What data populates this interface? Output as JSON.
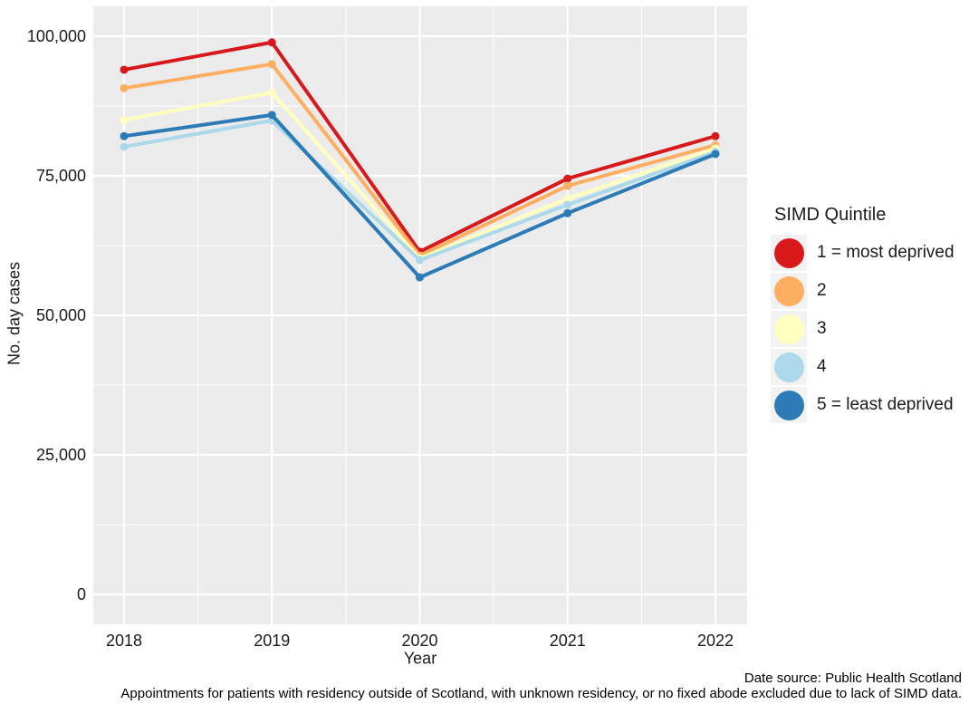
{
  "figure": {
    "y_axis_title": "No. day cases",
    "x_axis_title": "Year",
    "caption_line1": "Date source: Public Health Scotland",
    "caption_line2": "Appointments for patients with residency outside of Scotland, with unknown residency, or no fixed abode excluded due to lack of SIMD data."
  },
  "legend": {
    "title": "SIMD Quintile",
    "items": [
      {
        "label": "1 = most deprived",
        "color": "#d7191c"
      },
      {
        "label": "2",
        "color": "#fdae61"
      },
      {
        "label": "3",
        "color": "#ffffbf"
      },
      {
        "label": "4",
        "color": "#abd9e9"
      },
      {
        "label": "5 = least deprived",
        "color": "#2c7bb6"
      }
    ]
  },
  "chart_data": {
    "type": "line",
    "title": "",
    "xlabel": "Year",
    "ylabel": "No. day cases",
    "categories": [
      2018,
      2019,
      2020,
      2021,
      2022
    ],
    "xticks": [
      "2018",
      "2019",
      "2020",
      "2021",
      "2022"
    ],
    "yticks": [
      {
        "value": 100000,
        "label": "100,000"
      },
      {
        "value": 75000,
        "label": "75,000"
      },
      {
        "value": 50000,
        "label": "50,000"
      },
      {
        "value": 25000,
        "label": "25,000"
      },
      {
        "value": 0,
        "label": "0"
      }
    ],
    "yticks_minor": [
      87500,
      62500,
      37500,
      12500
    ],
    "ylim": [
      0,
      105000
    ],
    "grid": "white major and minor gridlines on gray panel",
    "panel_color": "#ebebeb",
    "gridline_color": "#ffffff",
    "legend_position": "right",
    "legend_title": "SIMD Quintile",
    "series": [
      {
        "name": "1 = most deprived",
        "color": "#d7191c",
        "values": [
          94000,
          98900,
          61400,
          74500,
          82100
        ]
      },
      {
        "name": "2",
        "color": "#fdae61",
        "values": [
          90700,
          95000,
          60700,
          73200,
          80500
        ]
      },
      {
        "name": "3",
        "color": "#ffffbf",
        "values": [
          85000,
          89900,
          60200,
          70900,
          79900
        ]
      },
      {
        "name": "4",
        "color": "#abd9e9",
        "values": [
          80200,
          84900,
          59900,
          69800,
          79300
        ]
      },
      {
        "name": "5 = least deprived",
        "color": "#2c7bb6",
        "values": [
          82100,
          85900,
          56800,
          68300,
          78900
        ]
      }
    ],
    "caption": [
      "Date source: Public Health Scotland",
      "Appointments for patients with residency outside of Scotland, with unknown residency, or no fixed abode excluded due to lack of SIMD data."
    ]
  }
}
